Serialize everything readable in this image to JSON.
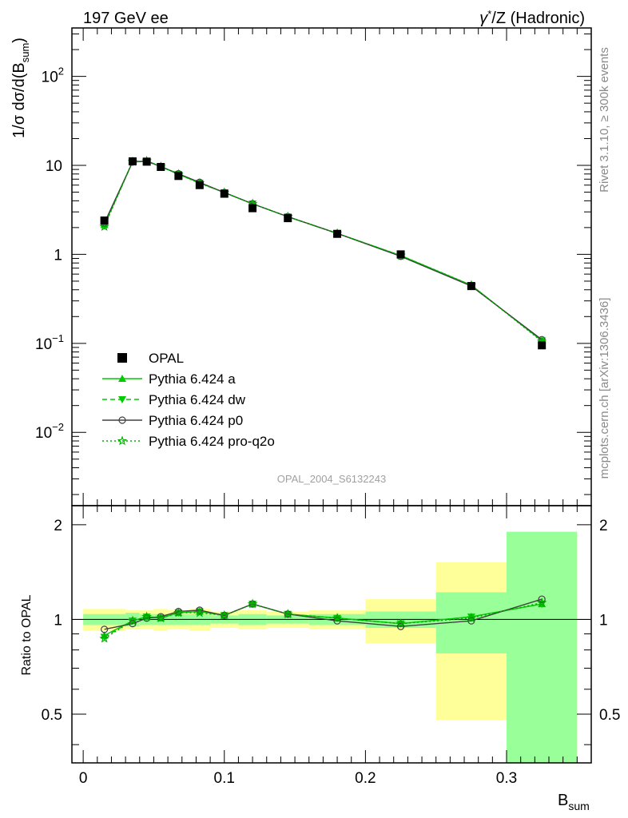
{
  "header": {
    "left": "197 GeV ee",
    "right_gamma": "γ",
    "right_star": "*",
    "right_rest": "/Z (Hadronic)"
  },
  "side_texts": {
    "rivet": "Rivet 3.1.10, ≥ 300k events",
    "mcplots": "mcplots.cern.ch [arXiv:1306.3436]"
  },
  "watermark": "OPAL_2004_S6132243",
  "colors": {
    "data": "#000000",
    "a": "#00cc00",
    "dw": "#00cc00",
    "p0": "#404040",
    "proq2o": "#00aa00",
    "band_inner": "#99ff99",
    "band_outer": "#ffff99"
  },
  "chart_data": {
    "type": "line",
    "xlabel": "B",
    "xlabel_sub": "sum",
    "ylabel_main_parts": [
      "1/σ dσ/d(B",
      "sum",
      ")"
    ],
    "ylabel_ratio": "Ratio to OPAL",
    "xlim": [
      -0.008,
      0.36
    ],
    "ylim_main": [
      0.0015,
      350
    ],
    "ylim_ratio": [
      0.35,
      2.3
    ],
    "log_y_main": true,
    "log_y_ratio": true,
    "x_ticks": [
      "0",
      "0.1",
      "0.2",
      "0.3"
    ],
    "x_tick_values": [
      0,
      0.1,
      0.2,
      0.3
    ],
    "y_ticks_main": [
      {
        "value": 0.01,
        "base": "10",
        "exp": "−2"
      },
      {
        "value": 0.1,
        "base": "10",
        "exp": "−1"
      },
      {
        "value": 1,
        "base": "1",
        "exp": ""
      },
      {
        "value": 10,
        "base": "10",
        "exp": ""
      },
      {
        "value": 100,
        "base": "10",
        "exp": "2"
      }
    ],
    "y_ticks_ratio": [
      {
        "value": 0.5,
        "label": "0.5"
      },
      {
        "value": 1,
        "label": "1"
      },
      {
        "value": 2,
        "label": "2"
      }
    ],
    "bins": [
      [
        0.0,
        0.03
      ],
      [
        0.03,
        0.04
      ],
      [
        0.04,
        0.05
      ],
      [
        0.05,
        0.06
      ],
      [
        0.06,
        0.075
      ],
      [
        0.075,
        0.09
      ],
      [
        0.09,
        0.11
      ],
      [
        0.11,
        0.13
      ],
      [
        0.13,
        0.16
      ],
      [
        0.16,
        0.2
      ],
      [
        0.2,
        0.25
      ],
      [
        0.25,
        0.3
      ],
      [
        0.3,
        0.35
      ]
    ],
    "x": [
      0.015,
      0.035,
      0.045,
      0.055,
      0.0675,
      0.0825,
      0.1,
      0.12,
      0.145,
      0.18,
      0.225,
      0.275,
      0.325
    ],
    "data": {
      "name": "OPAL",
      "values": [
        2.4,
        11.1,
        11.0,
        9.6,
        7.6,
        6.0,
        4.8,
        3.3,
        2.55,
        1.7,
        1.0,
        0.44,
        0.095
      ],
      "ratio_stat": [
        0.04,
        0.05,
        0.04,
        0.04,
        0.04,
        0.04,
        0.03,
        0.04,
        0.03,
        0.04,
        0.06,
        0.22,
        0.9
      ],
      "ratio_tot": [
        0.08,
        0.07,
        0.07,
        0.08,
        0.07,
        0.08,
        0.06,
        0.07,
        0.06,
        0.07,
        0.16,
        0.52,
        0.9
      ]
    },
    "series": [
      {
        "name": "Pythia 6.424 a",
        "key": "a",
        "values": [
          2.15,
          11.0,
          11.2,
          9.7,
          7.95,
          6.35,
          4.95,
          3.7,
          2.65,
          1.72,
          0.97,
          0.45,
          0.107
        ],
        "ratio": [
          0.89,
          0.99,
          1.02,
          1.01,
          1.05,
          1.06,
          1.03,
          1.12,
          1.04,
          1.01,
          0.97,
          1.02,
          1.12
        ]
      },
      {
        "name": "Pythia 6.424 dw",
        "key": "dw",
        "values": [
          2.1,
          11.0,
          11.25,
          9.75,
          7.95,
          6.35,
          4.95,
          3.7,
          2.65,
          1.72,
          0.97,
          0.45,
          0.107
        ],
        "ratio": [
          0.88,
          0.99,
          1.02,
          1.01,
          1.05,
          1.06,
          1.03,
          1.12,
          1.04,
          1.01,
          0.97,
          1.02,
          1.12
        ]
      },
      {
        "name": "Pythia 6.424 p0",
        "key": "p0",
        "values": [
          2.25,
          10.9,
          11.1,
          9.7,
          8.05,
          6.45,
          4.95,
          3.7,
          2.65,
          1.72,
          0.95,
          0.44,
          0.11
        ],
        "ratio": [
          0.93,
          0.97,
          1.01,
          1.02,
          1.06,
          1.07,
          1.03,
          1.12,
          1.04,
          0.99,
          0.95,
          0.99,
          1.16
        ]
      },
      {
        "name": "Pythia 6.424 pro-q2o",
        "key": "proq2o",
        "values": [
          2.05,
          11.0,
          11.2,
          9.7,
          7.95,
          6.3,
          4.95,
          3.7,
          2.65,
          1.72,
          0.97,
          0.45,
          0.105
        ],
        "ratio": [
          0.87,
          0.99,
          1.02,
          1.01,
          1.05,
          1.05,
          1.03,
          1.12,
          1.04,
          1.01,
          0.97,
          1.01,
          1.13
        ]
      }
    ],
    "legend_position": "lower-left"
  }
}
